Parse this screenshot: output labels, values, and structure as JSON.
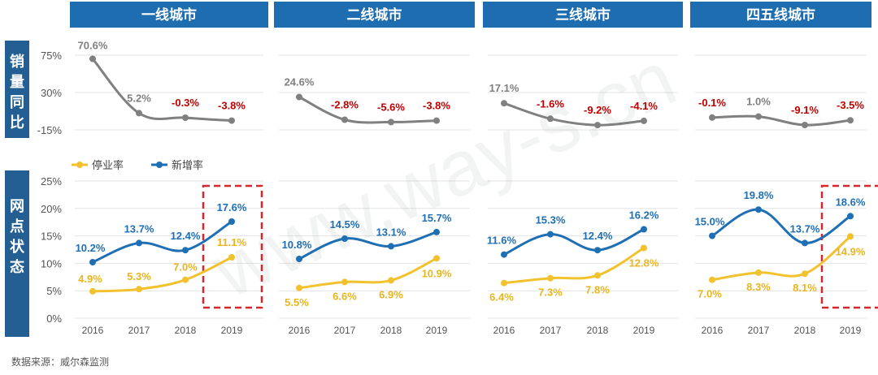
{
  "source": "数据来源：威尔森监测",
  "watermark": "www.way-s.cn",
  "colors": {
    "header_bg": "#1e6db0",
    "row_label_bg": "#245f93",
    "sales_line": "#808080",
    "stop_rate": "#f2c12e",
    "new_rate": "#1f6fb5",
    "negative_label": "#c00000",
    "highlight_box": "#d9262c",
    "grid": "#e3e3e3"
  },
  "chart_data": [
    {
      "type": "line",
      "panel": "一线城市",
      "row": "销量同比",
      "x": [
        "2016",
        "2017",
        "2018",
        "2019"
      ],
      "series": [
        {
          "values": [
            70.6,
            5.2,
            -0.3,
            -3.8
          ],
          "labels": [
            "70.6%",
            "5.2%",
            "-0.3%",
            "-3.8%"
          ]
        }
      ],
      "y_ticks": [
        "75%",
        "30%",
        "-15%"
      ],
      "ylim": [
        -15,
        75
      ],
      "grid": true
    },
    {
      "type": "line",
      "panel": "二线城市",
      "row": "销量同比",
      "x": [
        "2016",
        "2017",
        "2018",
        "2019"
      ],
      "series": [
        {
          "values": [
            24.6,
            -2.8,
            -5.6,
            -3.8
          ],
          "labels": [
            "24.6%",
            "-2.8%",
            "-5.6%",
            "-3.8%"
          ]
        }
      ],
      "ylim": [
        -15,
        75
      ],
      "grid": true
    },
    {
      "type": "line",
      "panel": "三线城市",
      "row": "销量同比",
      "x": [
        "2016",
        "2017",
        "2018",
        "2019"
      ],
      "series": [
        {
          "values": [
            17.1,
            -1.6,
            -9.2,
            -4.1
          ],
          "labels": [
            "17.1%",
            "-1.6%",
            "-9.2%",
            "-4.1%"
          ]
        }
      ],
      "ylim": [
        -15,
        75
      ],
      "grid": true
    },
    {
      "type": "line",
      "panel": "四五线城市",
      "row": "销量同比",
      "x": [
        "2016",
        "2017",
        "2018",
        "2019"
      ],
      "series": [
        {
          "values": [
            -0.1,
            1.0,
            -9.1,
            -3.5
          ],
          "labels": [
            "-0.1%",
            "1.0%",
            "-9.1%",
            "-3.5%"
          ]
        }
      ],
      "ylim": [
        -15,
        75
      ],
      "grid": true
    },
    {
      "type": "line",
      "panel": "一线城市",
      "row": "网点状态",
      "x": [
        "2016",
        "2017",
        "2018",
        "2019"
      ],
      "series": [
        {
          "name": "停业率",
          "values": [
            4.9,
            5.3,
            7.0,
            11.1
          ],
          "labels": [
            "4.9%",
            "5.3%",
            "7.0%",
            "11.1%"
          ]
        },
        {
          "name": "新增率",
          "values": [
            10.2,
            13.7,
            12.4,
            17.6
          ],
          "labels": [
            "10.2%",
            "13.7%",
            "12.4%",
            "17.6%"
          ]
        }
      ],
      "y_ticks": [
        "25%",
        "20%",
        "15%",
        "10%",
        "5%",
        "0%"
      ],
      "ylim": [
        0,
        25
      ],
      "legend": "top-left",
      "highlight": "2019",
      "grid": true
    },
    {
      "type": "line",
      "panel": "二线城市",
      "row": "网点状态",
      "x": [
        "2016",
        "2017",
        "2018",
        "2019"
      ],
      "series": [
        {
          "name": "停业率",
          "values": [
            5.5,
            6.6,
            6.9,
            10.9
          ],
          "labels": [
            "5.5%",
            "6.6%",
            "6.9%",
            "10.9%"
          ]
        },
        {
          "name": "新增率",
          "values": [
            10.8,
            14.5,
            13.1,
            15.7
          ],
          "labels": [
            "10.8%",
            "14.5%",
            "13.1%",
            "15.7%"
          ]
        }
      ],
      "ylim": [
        0,
        25
      ],
      "grid": true
    },
    {
      "type": "line",
      "panel": "三线城市",
      "row": "网点状态",
      "x": [
        "2016",
        "2017",
        "2018",
        "2019"
      ],
      "series": [
        {
          "name": "停业率",
          "values": [
            6.4,
            7.3,
            7.8,
            12.8
          ],
          "labels": [
            "6.4%",
            "7.3%",
            "7.8%",
            "12.8%"
          ]
        },
        {
          "name": "新增率",
          "values": [
            11.6,
            15.3,
            12.4,
            16.2
          ],
          "labels": [
            "11.6%",
            "15.3%",
            "12.4%",
            "16.2%"
          ]
        }
      ],
      "ylim": [
        0,
        25
      ],
      "grid": true
    },
    {
      "type": "line",
      "panel": "四五线城市",
      "row": "网点状态",
      "x": [
        "2016",
        "2017",
        "2018",
        "2019"
      ],
      "series": [
        {
          "name": "停业率",
          "values": [
            7.0,
            8.3,
            8.1,
            14.9
          ],
          "labels": [
            "7.0%",
            "8.3%",
            "8.1%",
            "14.9%"
          ]
        },
        {
          "name": "新增率",
          "values": [
            15.0,
            19.8,
            13.7,
            18.6
          ],
          "labels": [
            "15.0%",
            "19.8%",
            "13.7%",
            "18.6%"
          ]
        }
      ],
      "ylim": [
        0,
        25
      ],
      "highlight": "2019",
      "grid": true
    }
  ]
}
